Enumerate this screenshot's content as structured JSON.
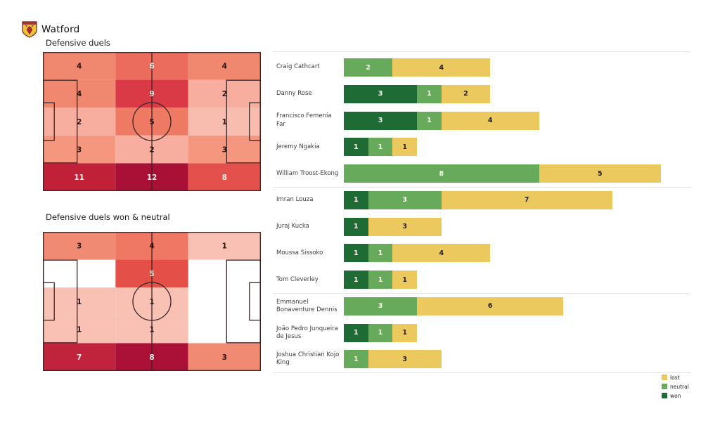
{
  "header": {
    "team": "Watford",
    "crest_colors": {
      "gold": "#f2c139",
      "band": "#a33434",
      "hart_red": "#c2242e",
      "outline": "#6b1f1f"
    }
  },
  "pitch_style": {
    "line_color": "#3a2426"
  },
  "legend": {
    "items": [
      "lost",
      "neutral",
      "won"
    ]
  },
  "chart_data": [
    {
      "id": "defensive-duels-heatmap",
      "type": "heatmap",
      "title": "Defensive duels",
      "rows": 5,
      "cols": 3,
      "values": [
        [
          4,
          6,
          4
        ],
        [
          4,
          9,
          2
        ],
        [
          2,
          5,
          1
        ],
        [
          3,
          2,
          3
        ],
        [
          11,
          12,
          8
        ]
      ],
      "cell_colors": [
        [
          "#f0876f",
          "#eb6c5d",
          "#f0876f"
        ],
        [
          "#f0876f",
          "#da3a45",
          "#f7ae9e"
        ],
        [
          "#f7ae9e",
          "#ee7a63",
          "#f9bdb0"
        ],
        [
          "#f5977f",
          "#f7ae9e",
          "#f5977f"
        ],
        [
          "#c02138",
          "#a81036",
          "#e4514d"
        ]
      ],
      "text_colors": [
        [
          "#2a1517",
          "#fdeee7",
          "#2a1517"
        ],
        [
          "#2a1517",
          "#fdeee7",
          "#2a1517"
        ],
        [
          "#2a1517",
          "#2a1517",
          "#2a1517"
        ],
        [
          "#2a1517",
          "#2a1517",
          "#2a1517"
        ],
        [
          "#fdeee7",
          "#fdeee7",
          "#fdeee7"
        ]
      ]
    },
    {
      "id": "defensive-duels-won-neutral-heatmap",
      "type": "heatmap",
      "title": "Defensive duels won & neutral",
      "rows": 5,
      "cols": 3,
      "values": [
        [
          3,
          4,
          1
        ],
        [
          null,
          5,
          null
        ],
        [
          1,
          1,
          null
        ],
        [
          1,
          1,
          null
        ],
        [
          7,
          8,
          3
        ]
      ],
      "cell_colors": [
        [
          "#f18a72",
          "#ee7863",
          "#f9c0b4"
        ],
        [
          null,
          "#e45048",
          null
        ],
        [
          "#f9c0b4",
          "#f9c0b4",
          null
        ],
        [
          "#f9c0b4",
          "#f9c0b4",
          null
        ],
        [
          "#c0233c",
          "#ab1036",
          "#f18a72"
        ]
      ],
      "text_colors": [
        [
          "#2a1517",
          "#2a1517",
          "#2a1517"
        ],
        [
          null,
          "#fdeee7",
          null
        ],
        [
          "#2a1517",
          "#2a1517",
          null
        ],
        [
          "#2a1517",
          "#2a1517",
          null
        ],
        [
          "#fdeee7",
          "#fdeee7",
          "#2a1517"
        ]
      ]
    },
    {
      "id": "duels-by-player",
      "type": "bar",
      "orientation": "horizontal",
      "stacked": true,
      "categories": [
        "Craig Cathcart",
        "Danny Rose",
        "Francisco Femenía Far",
        "Jeremy Ngakia",
        "William Troost-Ekong",
        "Imran Louza",
        "Juraj Kucka",
        "Moussa Sissoko",
        "Tom Cleverley",
        "Emmanuel Bonaventure Dennis",
        "João Pedro Junqueira de Jesus",
        "Joshua Christian Kojo King"
      ],
      "series": [
        {
          "name": "won",
          "color": "#1e6b36",
          "values": [
            0,
            3,
            3,
            1,
            0,
            1,
            1,
            1,
            1,
            0,
            1,
            0
          ]
        },
        {
          "name": "neutral",
          "color": "#67aa5b",
          "values": [
            2,
            1,
            1,
            1,
            8,
            3,
            0,
            1,
            1,
            3,
            1,
            1
          ]
        },
        {
          "name": "lost",
          "color": "#ecc95f",
          "values": [
            4,
            2,
            4,
            1,
            5,
            7,
            3,
            4,
            1,
            6,
            1,
            3
          ]
        }
      ],
      "value_label_colors": {
        "won": "#fcf6ee",
        "neutral": "#fcf6ee",
        "lost": "#1f1f1f"
      },
      "group_separators_after_index": [
        4,
        8
      ],
      "xlim": [
        0,
        13.5
      ],
      "legend_position": "bottom-right"
    }
  ]
}
